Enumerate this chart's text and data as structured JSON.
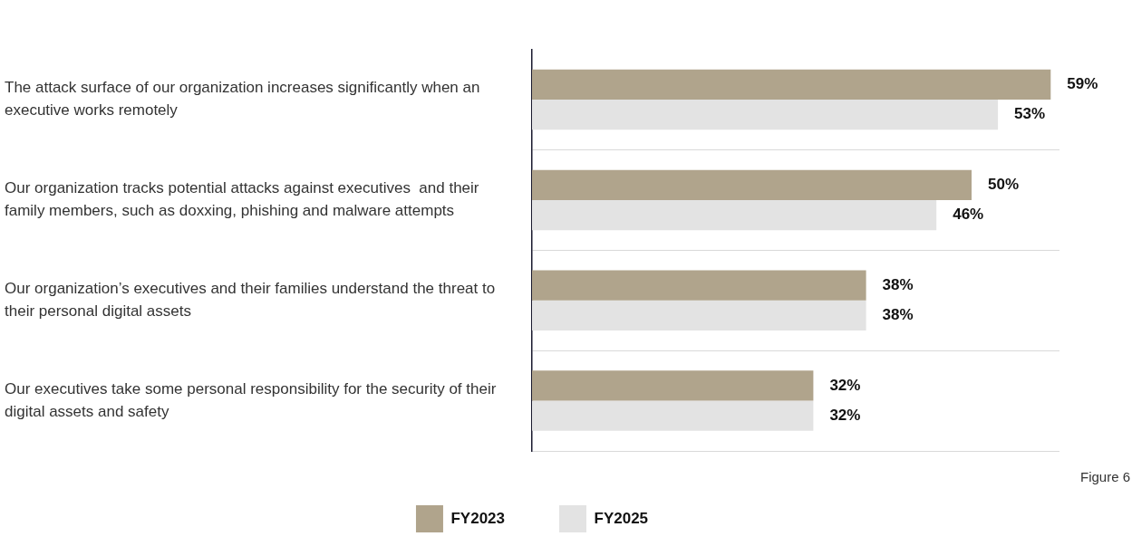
{
  "chart_data": {
    "type": "bar",
    "orientation": "horizontal",
    "categories": [
      "The attack surface of our organization increases significantly when an executive works remotely",
      "Our organization tracks potential attacks against executives  and their family members, such as doxxing, phishing and malware attempts",
      "Our organization’s executives and their families understand the threat to their personal digital assets",
      "Our executives take some personal responsibility for the security of their digital assets and safety"
    ],
    "series": [
      {
        "name": "FY2023",
        "color": "#b0a48c",
        "values": [
          59,
          50,
          38,
          32
        ],
        "value_labels": [
          "59%",
          "50%",
          "38%",
          "32%"
        ]
      },
      {
        "name": "FY2025",
        "color": "#e3e3e3",
        "values": [
          53,
          46,
          38,
          32
        ],
        "value_labels": [
          "53%",
          "46%",
          "38%",
          "32%"
        ]
      }
    ],
    "grid": "y",
    "legend": "bottom",
    "tick_labels": "y",
    "annotations": [
      "Figure 6"
    ]
  }
}
